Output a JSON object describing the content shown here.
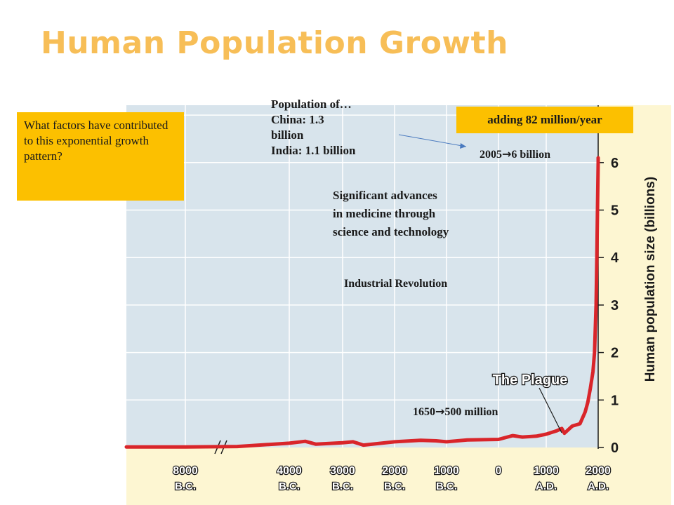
{
  "slide": {
    "title": "Human Population Growth"
  },
  "question_box": {
    "text": "What factors have contributed to this exponential growth pattern?"
  },
  "rate_box": {
    "text": "adding 82 million/year"
  },
  "callouts": {
    "population_of": [
      "Population of…",
      "China: 1.3",
      "billion",
      "India: 1.1 billion"
    ],
    "medicine": [
      "Significant advances",
      "in medicine through",
      "science and technology"
    ],
    "industrial": "Industrial Revolution",
    "year_2005_prefix": "2005",
    "year_2005_suffix": "6 billion",
    "year_1650_prefix": "1650",
    "year_1650_suffix": "500 million",
    "plague": "The Plague"
  },
  "colors": {
    "plot_bg": "#d8e4ec",
    "axis_bg": "#fdf6d2",
    "curve": "#d9252a",
    "accent": "#fcc000",
    "title": "#f7be57"
  },
  "chart_data": {
    "type": "line",
    "title": "",
    "xlabel": "",
    "ylabel": "Human population size (billions)",
    "x_ticks": [
      {
        "top": "8000",
        "bottom": "B.C."
      },
      {
        "top": "4000",
        "bottom": "B.C."
      },
      {
        "top": "3000",
        "bottom": "B.C."
      },
      {
        "top": "2000",
        "bottom": "B.C."
      },
      {
        "top": "1000",
        "bottom": "B.C."
      },
      {
        "top": "0",
        "bottom": ""
      },
      {
        "top": "1000",
        "bottom": "A.D."
      },
      {
        "top": "2000",
        "bottom": "A.D."
      }
    ],
    "y_ticks": [
      "0",
      "1",
      "2",
      "3",
      "4",
      "5",
      "6"
    ],
    "ylim": [
      0,
      7
    ],
    "axis_break_between": [
      "8000 B.C.",
      "4000 B.C."
    ],
    "grid": true,
    "series": [
      {
        "name": "",
        "points": [
          {
            "x": -8000,
            "y": 0.01
          },
          {
            "x": -6000,
            "y": 0.02
          },
          {
            "x": -4000,
            "y": 0.09
          },
          {
            "x": -3700,
            "y": 0.13
          },
          {
            "x": -3500,
            "y": 0.07
          },
          {
            "x": -3000,
            "y": 0.1
          },
          {
            "x": -2800,
            "y": 0.12
          },
          {
            "x": -2600,
            "y": 0.05
          },
          {
            "x": -2000,
            "y": 0.12
          },
          {
            "x": -1500,
            "y": 0.15
          },
          {
            "x": -1200,
            "y": 0.14
          },
          {
            "x": -1000,
            "y": 0.12
          },
          {
            "x": -600,
            "y": 0.16
          },
          {
            "x": 0,
            "y": 0.17
          },
          {
            "x": 300,
            "y": 0.25
          },
          {
            "x": 500,
            "y": 0.22
          },
          {
            "x": 800,
            "y": 0.24
          },
          {
            "x": 1000,
            "y": 0.28
          },
          {
            "x": 1200,
            "y": 0.35
          },
          {
            "x": 1300,
            "y": 0.4
          },
          {
            "x": 1350,
            "y": 0.3
          },
          {
            "x": 1400,
            "y": 0.35
          },
          {
            "x": 1500,
            "y": 0.45
          },
          {
            "x": 1650,
            "y": 0.5
          },
          {
            "x": 1750,
            "y": 0.75
          },
          {
            "x": 1800,
            "y": 0.95
          },
          {
            "x": 1850,
            "y": 1.25
          },
          {
            "x": 1900,
            "y": 1.6
          },
          {
            "x": 1930,
            "y": 2.0
          },
          {
            "x": 1960,
            "y": 3.0
          },
          {
            "x": 1975,
            "y": 4.0
          },
          {
            "x": 1987,
            "y": 5.0
          },
          {
            "x": 2000,
            "y": 6.0
          },
          {
            "x": 2005,
            "y": 6.1
          }
        ]
      }
    ]
  }
}
